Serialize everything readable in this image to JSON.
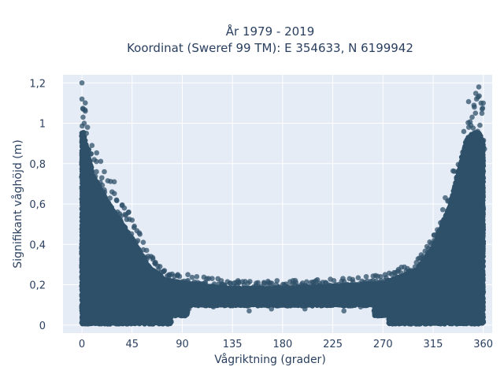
{
  "chart_data": {
    "type": "scatter",
    "title_line1": "År 1979 - 2019",
    "title_line2": "Koordinat (Sweref 99 TM): E 354633, N 6199942",
    "xlabel": "Vågriktning (grader)",
    "ylabel": "Signifikant våghöjd (m)",
    "xlim": [
      -17,
      368
    ],
    "ylim": [
      -0.04,
      1.24
    ],
    "xticks": [
      0,
      45,
      90,
      135,
      180,
      225,
      270,
      315,
      360
    ],
    "xtick_labels": [
      "0",
      "45",
      "90",
      "135",
      "180",
      "225",
      "270",
      "315",
      "360"
    ],
    "yticks": [
      0,
      0.2,
      0.4,
      0.6,
      0.8,
      1.0,
      1.2
    ],
    "ytick_labels": [
      "0",
      "0,2",
      "0,4",
      "0,6",
      "0,8",
      "1",
      "1,2"
    ],
    "grid": true,
    "colors": {
      "plot_bg": "#e5ecf6",
      "marker": "#2f5069",
      "text": "#2a3f5f"
    },
    "envelope": [
      {
        "x": 0,
        "y_max": 1.2
      },
      {
        "x": 10,
        "y_max": 0.9
      },
      {
        "x": 25,
        "y_max": 0.72
      },
      {
        "x": 45,
        "y_max": 0.52
      },
      {
        "x": 60,
        "y_max": 0.35
      },
      {
        "x": 75,
        "y_max": 0.27
      },
      {
        "x": 90,
        "y_max": 0.25
      },
      {
        "x": 135,
        "y_max": 0.22
      },
      {
        "x": 180,
        "y_max": 0.22
      },
      {
        "x": 225,
        "y_max": 0.23
      },
      {
        "x": 270,
        "y_max": 0.25
      },
      {
        "x": 300,
        "y_max": 0.33
      },
      {
        "x": 315,
        "y_max": 0.47
      },
      {
        "x": 330,
        "y_max": 0.72
      },
      {
        "x": 345,
        "y_max": 1.12
      },
      {
        "x": 355,
        "y_max": 1.18
      },
      {
        "x": 360,
        "y_max": 1.1
      }
    ],
    "points": [
      [
        0,
        1.2
      ],
      [
        0,
        1.12
      ],
      [
        1,
        1.07
      ],
      [
        3,
        1.06
      ],
      [
        1,
        1.03
      ],
      [
        2,
        1.0
      ],
      [
        5,
        0.98
      ],
      [
        4,
        0.95
      ],
      [
        2,
        0.93
      ],
      [
        9,
        0.89
      ],
      [
        6,
        0.87
      ],
      [
        3,
        0.84
      ],
      [
        11,
        0.82
      ],
      [
        8,
        0.79
      ],
      [
        1,
        0.78
      ],
      [
        13,
        0.76
      ],
      [
        5,
        0.74
      ],
      [
        29,
        0.71
      ],
      [
        20,
        0.67
      ],
      [
        27,
        0.66
      ],
      [
        17,
        0.63
      ],
      [
        31,
        0.62
      ],
      [
        24,
        0.6
      ],
      [
        38,
        0.58
      ],
      [
        42,
        0.56
      ],
      [
        35,
        0.54
      ],
      [
        45,
        0.52
      ],
      [
        47,
        0.49
      ],
      [
        52,
        0.45
      ],
      [
        55,
        0.41
      ],
      [
        58,
        0.37
      ],
      [
        62,
        0.34
      ],
      [
        66,
        0.31
      ],
      [
        70,
        0.29
      ],
      [
        74,
        0.27
      ],
      [
        79,
        0.25
      ],
      [
        86,
        0.25
      ],
      [
        95,
        0.25
      ],
      [
        103,
        0.24
      ],
      [
        112,
        0.23
      ],
      [
        125,
        0.22
      ],
      [
        140,
        0.22
      ],
      [
        158,
        0.21
      ],
      [
        175,
        0.22
      ],
      [
        192,
        0.21
      ],
      [
        210,
        0.22
      ],
      [
        226,
        0.22
      ],
      [
        240,
        0.23
      ],
      [
        255,
        0.24
      ],
      [
        268,
        0.24
      ],
      [
        280,
        0.26
      ],
      [
        292,
        0.28
      ],
      [
        300,
        0.31
      ],
      [
        306,
        0.34
      ],
      [
        311,
        0.38
      ],
      [
        316,
        0.42
      ],
      [
        320,
        0.46
      ],
      [
        324,
        0.5
      ],
      [
        327,
        0.54
      ],
      [
        331,
        0.59
      ],
      [
        334,
        0.63
      ],
      [
        337,
        0.67
      ],
      [
        340,
        0.74
      ],
      [
        342,
        0.79
      ],
      [
        344,
        0.84
      ],
      [
        346,
        0.89
      ],
      [
        348,
        0.92
      ],
      [
        347,
        0.98
      ],
      [
        350,
        1.03
      ],
      [
        352,
        1.08
      ],
      [
        354,
        1.12
      ],
      [
        356,
        1.18
      ],
      [
        358,
        1.1
      ],
      [
        359,
        1.07
      ],
      [
        360,
        1.1
      ],
      [
        353,
        1.05
      ],
      [
        357,
        0.99
      ],
      [
        355,
        0.96
      ],
      [
        359,
        0.88
      ],
      [
        360,
        0.8
      ],
      [
        84,
        0.1
      ],
      [
        96,
        0.08
      ],
      [
        118,
        0.09
      ],
      [
        150,
        0.07
      ],
      [
        170,
        0.08
      ],
      [
        200,
        0.08
      ],
      [
        235,
        0.07
      ],
      [
        262,
        0.07
      ],
      [
        278,
        0.09
      ],
      [
        90,
        0.12
      ],
      [
        130,
        0.1
      ],
      [
        185,
        0.1
      ],
      [
        250,
        0.09
      ],
      [
        105,
        0.2
      ],
      [
        155,
        0.16
      ],
      [
        215,
        0.18
      ],
      [
        265,
        0.2
      ],
      [
        60,
        0.05
      ],
      [
        72,
        0.04
      ],
      [
        300,
        0.05
      ]
    ]
  }
}
